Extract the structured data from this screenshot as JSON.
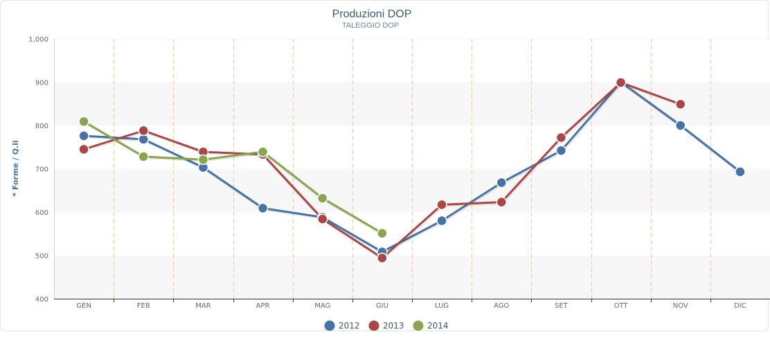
{
  "chart_data": {
    "type": "line",
    "title": "Produzioni DOP",
    "subtitle": "TALEGGIO DOP",
    "ylabel": "* Forme / Q.li",
    "xlabel": "",
    "categories": [
      "GEN",
      "FEB",
      "MAR",
      "APR",
      "MAG",
      "GIU",
      "LUG",
      "AGO",
      "SET",
      "OTT",
      "NOV",
      "DIC"
    ],
    "ylim": [
      400,
      1000
    ],
    "yticks": [
      400,
      500,
      600,
      700,
      800,
      900,
      1000
    ],
    "ytick_labels": [
      "400",
      "500",
      "600",
      "700",
      "800",
      "900",
      "1,000"
    ],
    "grid": "alternating horizontal bands, dashed vertical category separators",
    "legend_position": "bottom-center",
    "series": [
      {
        "name": "2012",
        "color": "#4572a7",
        "values": [
          776,
          768,
          703,
          609,
          588,
          508,
          580,
          668,
          742,
          900,
          800,
          693
        ]
      },
      {
        "name": "2013",
        "color": "#aa4643",
        "values": [
          745,
          788,
          739,
          733,
          584,
          494,
          617,
          623,
          772,
          899,
          849,
          null
        ]
      },
      {
        "name": "2014",
        "color": "#89a54e",
        "values": [
          809,
          728,
          721,
          739,
          632,
          551,
          null,
          null,
          null,
          null,
          null,
          null
        ]
      }
    ]
  }
}
